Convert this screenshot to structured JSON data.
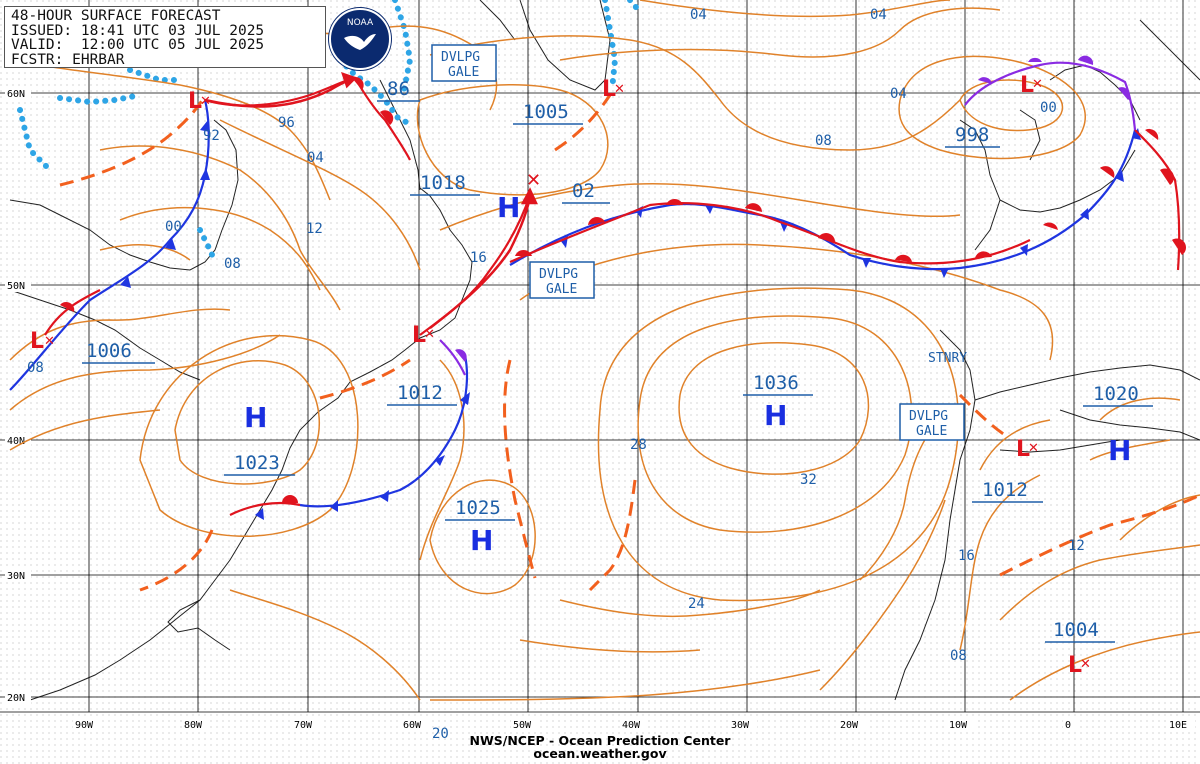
{
  "header": {
    "line1": "48-HOUR SURFACE FORECAST",
    "line2": "ISSUED: 18:41 UTC 03 JUL 2025",
    "line3": "VALID:  12:00 UTC 05 JUL 2025",
    "line4": "FCSTR: EHRBAR"
  },
  "logo": {
    "text": "NOAA"
  },
  "footer": {
    "line1": "NWS/NCEP - Ocean Prediction Center",
    "line2": "ocean.weather.gov"
  },
  "latitude_labels": [
    "60N",
    "50N",
    "40N",
    "30N",
    "20N"
  ],
  "longitude_labels": [
    "90W",
    "80W",
    "70W",
    "60W",
    "50W",
    "40W",
    "30W",
    "20W",
    "10W",
    "0",
    "10E"
  ],
  "pressure_centers": [
    {
      "type": "L",
      "pressure": "1006",
      "tag": "low-great-lakes"
    },
    {
      "type": "L",
      "pressure": "",
      "tag": "low-hudson-bay"
    },
    {
      "type": "L",
      "pressure": "",
      "tag": "low-newfoundland"
    },
    {
      "type": "L",
      "pressure": "",
      "tag": "low-greenland-east"
    },
    {
      "type": "L",
      "pressure": "998",
      "tag": "low-norwegian-sea"
    },
    {
      "type": "L",
      "pressure": "",
      "tag": "low-iberia"
    },
    {
      "type": "L",
      "pressure": "1004",
      "tag": "low-west-africa"
    },
    {
      "type": "H",
      "pressure": "1023",
      "tag": "high-east-coast"
    },
    {
      "type": "H",
      "pressure": "1018",
      "tag": "high-labrador-sea"
    },
    {
      "type": "H",
      "pressure": "1036",
      "tag": "high-azores"
    },
    {
      "type": "H",
      "pressure": "1025",
      "tag": "high-bermuda"
    },
    {
      "type": "H",
      "pressure": "1020",
      "tag": "high-mediterranean"
    }
  ],
  "isobar_labels": [
    "86",
    "92",
    "96",
    "00",
    "04",
    "08",
    "12",
    "16",
    "1012",
    "1005",
    "02",
    "04",
    "04",
    "08",
    "00",
    "28",
    "32",
    "24",
    "20",
    "12",
    "16",
    "08",
    "1012",
    "08"
  ],
  "warnings": [
    {
      "line1": "DVLPG",
      "line2": "GALE",
      "tag": "gale-greenland"
    },
    {
      "line1": "DVLPG",
      "line2": "GALE",
      "tag": "gale-central-atlantic"
    },
    {
      "line1": "DVLPG",
      "line2": "GALE",
      "tag": "gale-iberia"
    }
  ],
  "front_labels": {
    "stationary": "STNRY"
  },
  "colors": {
    "isobar": "#e0822a",
    "grid": "#000000",
    "dots": "#b9b9b9",
    "cold_front": "#1f35e0",
    "warm_front": "#e0141e",
    "occluded_front": "#8a2be2",
    "trough": "#f2601e",
    "ice_edge": "#2ea5e6",
    "label_blue": "#1f5fa8",
    "center_blue": "#1a2fe0",
    "center_red": "#e0141e"
  }
}
